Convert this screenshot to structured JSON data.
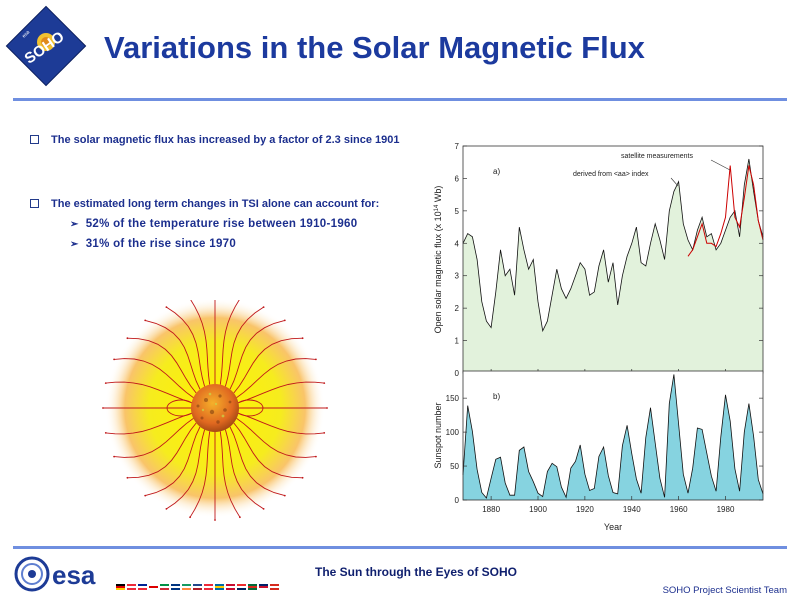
{
  "header": {
    "title": "Variations in the Solar Magnetic Flux",
    "logo_text": "SOHO",
    "logo_small": "esa"
  },
  "bullets": {
    "item1": "The solar magnetic flux has increased by a factor of 2.3 since 1901",
    "item2": "The estimated long term changes in TSI alone can account for:",
    "sub1": "52% of the temperature rise between 1910-1960",
    "sub2": "31% of the rise since 1970"
  },
  "footer": {
    "center": "The Sun through the Eyes of SOHO",
    "right": "SOHO Project Scientist Team",
    "esa_label": "esa"
  },
  "colors": {
    "title": "#1c3a9e",
    "rule": "#6f8fe0",
    "panel_a_fill": "#e2f2dc",
    "panel_b_fill": "#86d3e0",
    "satellite_line": "#cc0000"
  },
  "chart_data": [
    {
      "type": "area",
      "panel_label": "a)",
      "ylabel": "Open solar magnetic flux (x 10^14 Wb)",
      "ylim": [
        0,
        7
      ],
      "yticks": [
        0,
        1,
        2,
        3,
        4,
        5,
        6,
        7
      ],
      "xlim": [
        1868,
        1996
      ],
      "annotations": [
        "satellite measurements",
        "derived from <aa> index"
      ],
      "series": [
        {
          "name": "derived from <aa> index",
          "x": [
            1868,
            1870,
            1872,
            1874,
            1876,
            1878,
            1880,
            1882,
            1884,
            1886,
            1888,
            1890,
            1892,
            1894,
            1896,
            1898,
            1900,
            1902,
            1904,
            1906,
            1908,
            1910,
            1912,
            1914,
            1916,
            1918,
            1920,
            1922,
            1924,
            1926,
            1928,
            1930,
            1932,
            1934,
            1936,
            1938,
            1940,
            1942,
            1944,
            1946,
            1948,
            1950,
            1952,
            1954,
            1956,
            1958,
            1960,
            1962,
            1964,
            1966,
            1968,
            1970,
            1972,
            1974,
            1976,
            1978,
            1980,
            1982,
            1984,
            1986,
            1988,
            1990,
            1992,
            1994,
            1996
          ],
          "y": [
            4.0,
            4.3,
            4.2,
            3.5,
            2.2,
            1.6,
            1.4,
            2.5,
            3.8,
            3.0,
            3.2,
            2.4,
            4.5,
            3.8,
            3.2,
            3.5,
            2.2,
            1.3,
            1.6,
            2.4,
            3.2,
            2.6,
            2.3,
            2.6,
            3.0,
            3.4,
            3.2,
            2.4,
            2.5,
            3.3,
            3.8,
            2.8,
            3.4,
            2.1,
            3.0,
            3.6,
            4.0,
            4.5,
            3.4,
            3.3,
            4.0,
            4.6,
            4.1,
            3.5,
            5.0,
            5.6,
            5.9,
            4.6,
            4.1,
            3.8,
            4.4,
            4.8,
            4.2,
            4.3,
            3.8,
            4.0,
            4.4,
            4.8,
            5.0,
            4.2,
            5.8,
            6.6,
            5.6,
            4.7,
            4.2
          ]
        },
        {
          "name": "satellite measurements",
          "x": [
            1964,
            1966,
            1968,
            1970,
            1972,
            1974,
            1976,
            1978,
            1980,
            1982,
            1984,
            1986,
            1988,
            1990,
            1992,
            1994,
            1996
          ],
          "y": [
            3.6,
            3.8,
            4.2,
            4.6,
            4.0,
            4.0,
            3.9,
            4.3,
            4.8,
            6.4,
            4.8,
            4.5,
            5.4,
            6.4,
            5.8,
            4.7,
            4.1
          ]
        }
      ]
    },
    {
      "type": "area",
      "panel_label": "b)",
      "ylabel": "Sunspot number",
      "xlabel": "Year",
      "ylim": [
        0,
        190
      ],
      "yticks": [
        0,
        50,
        100,
        150
      ],
      "xlim": [
        1868,
        1996
      ],
      "xticks": [
        1880,
        1900,
        1920,
        1940,
        1960,
        1980
      ],
      "series": [
        {
          "name": "Sunspot number",
          "x": [
            1868,
            1870,
            1872,
            1874,
            1876,
            1878,
            1880,
            1882,
            1884,
            1886,
            1888,
            1890,
            1892,
            1894,
            1896,
            1898,
            1900,
            1902,
            1904,
            1906,
            1908,
            1910,
            1912,
            1914,
            1916,
            1918,
            1920,
            1922,
            1924,
            1926,
            1928,
            1930,
            1932,
            1934,
            1936,
            1938,
            1940,
            1942,
            1944,
            1946,
            1948,
            1950,
            1952,
            1954,
            1956,
            1958,
            1960,
            1962,
            1964,
            1966,
            1968,
            1970,
            1972,
            1974,
            1976,
            1978,
            1980,
            1982,
            1984,
            1986,
            1988,
            1990,
            1992,
            1994,
            1996
          ],
          "y": [
            37,
            139,
            101,
            45,
            11,
            3,
            32,
            60,
            63,
            25,
            7,
            7,
            73,
            78,
            42,
            27,
            10,
            5,
            42,
            54,
            49,
            19,
            4,
            47,
            57,
            81,
            38,
            14,
            17,
            64,
            78,
            36,
            11,
            9,
            80,
            110,
            68,
            31,
            10,
            92,
            136,
            84,
            32,
            4,
            142,
            185,
            112,
            38,
            10,
            47,
            106,
            104,
            69,
            35,
            13,
            93,
            155,
            116,
            46,
            13,
            100,
            142,
            94,
            30,
            9
          ]
        }
      ]
    }
  ]
}
